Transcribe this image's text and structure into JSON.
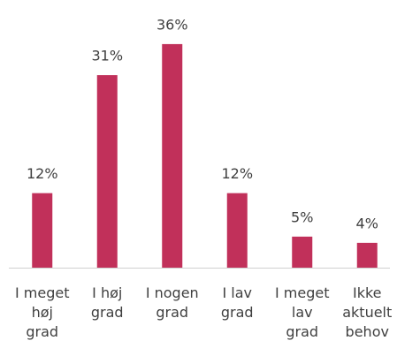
{
  "chart_data": {
    "type": "bar",
    "categories": [
      "I meget høj grad",
      "I høj grad",
      "I nogen grad",
      "I lav grad",
      "I meget lav grad",
      "Ikke aktuelt behov"
    ],
    "values": [
      12,
      31,
      36,
      12,
      5,
      4
    ],
    "value_labels": [
      "12%",
      "31%",
      "36%",
      "12%",
      "5%",
      "4%"
    ],
    "color": "#c1305a"
  }
}
